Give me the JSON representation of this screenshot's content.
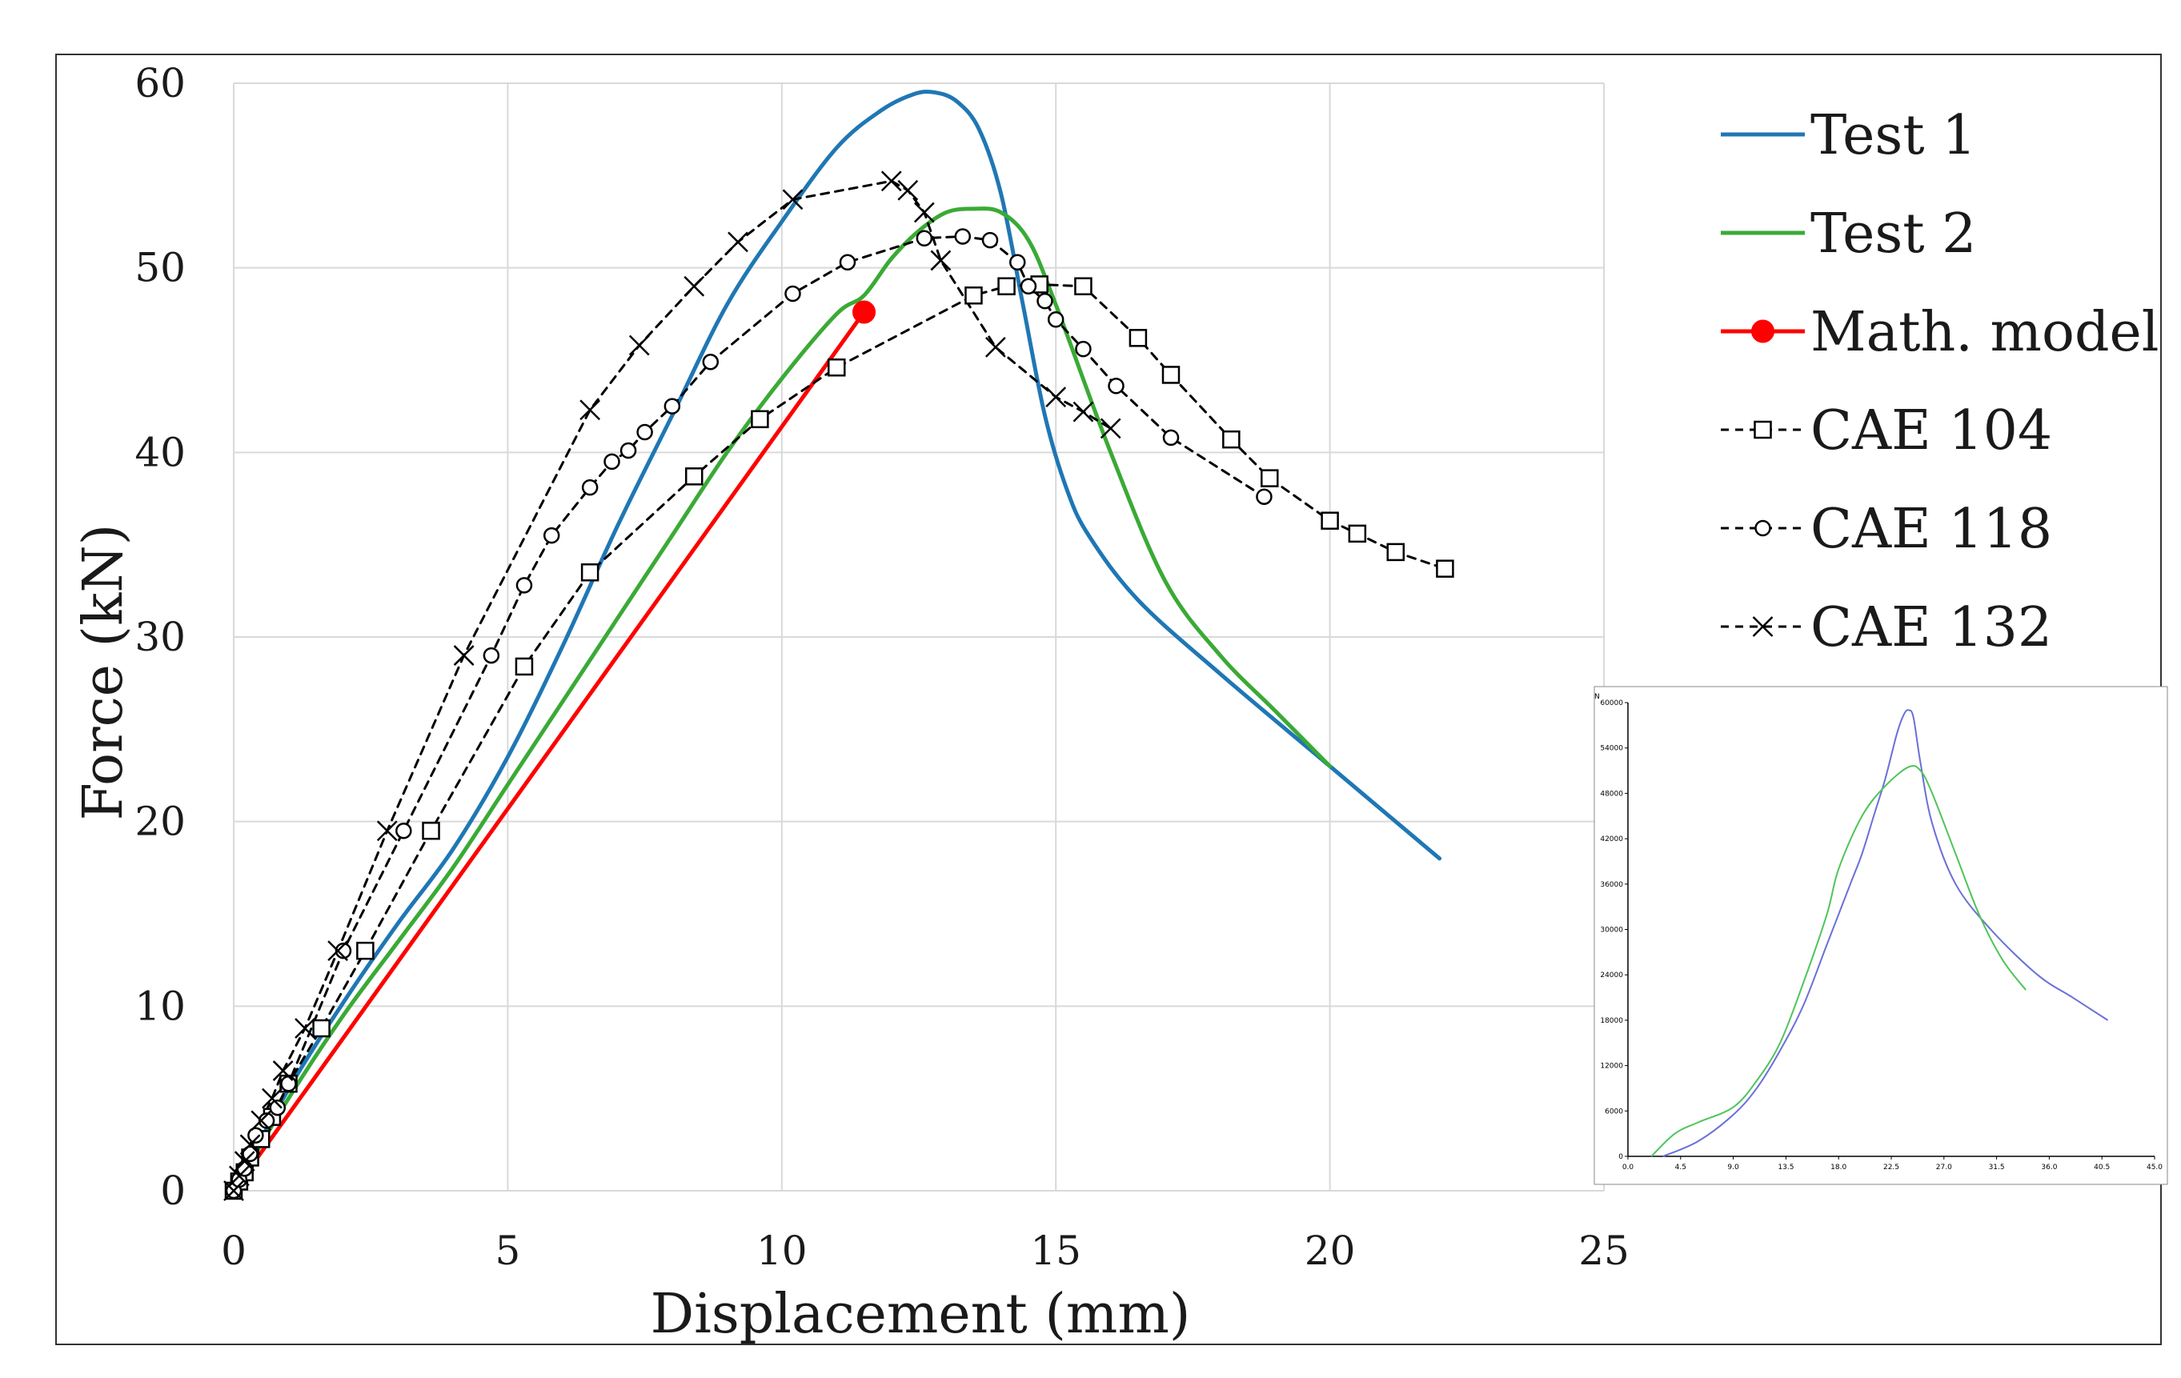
{
  "chart_data": [
    {
      "type": "line",
      "xlabel": "Displacement (mm)",
      "ylabel": "Force (kN)",
      "xlim": [
        0,
        25
      ],
      "ylim": [
        0,
        60
      ],
      "x_ticks": [
        0,
        5,
        10,
        15,
        20,
        25
      ],
      "y_ticks": [
        0,
        10,
        20,
        30,
        40,
        50,
        60
      ],
      "grid": true,
      "legend_position": "right",
      "series": [
        {
          "name": "Test 1",
          "color": "#1f77b4",
          "style": "solid",
          "marker": "none",
          "x": [
            0,
            1,
            2,
            3,
            4,
            5,
            6,
            7,
            8,
            9,
            10,
            11,
            11.8,
            12.4,
            12.8,
            13.2,
            13.6,
            14,
            14.4,
            14.8,
            15.2,
            15.6,
            16.5,
            18,
            20,
            22
          ],
          "y": [
            0,
            5.5,
            10.2,
            14.5,
            18.5,
            23.5,
            29.5,
            36,
            42,
            48,
            52.5,
            56.5,
            58.5,
            59.4,
            59.5,
            59,
            57.5,
            54,
            48,
            42,
            38,
            35.5,
            32,
            28,
            23,
            18
          ]
        },
        {
          "name": "Test 2",
          "color": "#3aaa35",
          "style": "solid",
          "marker": "none",
          "x": [
            0,
            1,
            2,
            3,
            4,
            5,
            6,
            7,
            8,
            9,
            10,
            11,
            11.5,
            12,
            12.5,
            13,
            13.5,
            14,
            14.5,
            15,
            16,
            17,
            18,
            19,
            20
          ],
          "y": [
            0,
            5,
            9.5,
            13.5,
            17.5,
            22,
            26.5,
            31,
            35.5,
            40,
            44,
            47.5,
            48.5,
            50.5,
            52,
            53,
            53.2,
            53,
            51.5,
            48,
            40,
            33,
            29,
            26,
            23
          ]
        },
        {
          "name": "Math. model",
          "color": "#ff0000",
          "style": "solid",
          "marker": "filled-circle",
          "x": [
            0,
            11.5
          ],
          "y": [
            0,
            47.6
          ]
        },
        {
          "name": "CAE 104",
          "color": "#000000",
          "style": "dashed",
          "marker": "square",
          "x": [
            0,
            0.1,
            0.2,
            0.3,
            0.5,
            0.7,
            1,
            1.6,
            2.4,
            3.6,
            5.3,
            6.5,
            8.4,
            9.6,
            11,
            13.5,
            14.1,
            14.7,
            15.5,
            16.5,
            17.1,
            18.2,
            18.9,
            20,
            20.5,
            21.2,
            22.1
          ],
          "y": [
            0,
            0.5,
            1,
            1.8,
            2.8,
            4,
            5.8,
            8.8,
            13,
            19.5,
            28.4,
            33.5,
            38.7,
            41.8,
            44.6,
            48.5,
            49,
            49.1,
            49,
            46.2,
            44.2,
            40.7,
            38.6,
            36.3,
            35.6,
            34.6,
            33.7
          ]
        },
        {
          "name": "CAE 118",
          "color": "#000000",
          "style": "dashed",
          "marker": "circle",
          "x": [
            0,
            0.1,
            0.2,
            0.3,
            0.4,
            0.6,
            0.8,
            1,
            2,
            3.1,
            4.7,
            5.3,
            5.8,
            6.5,
            6.9,
            7.2,
            7.5,
            8,
            8.7,
            10.2,
            11.2,
            12.6,
            13.3,
            13.8,
            14.3,
            14.5,
            14.8,
            15,
            15.5,
            16.1,
            17.1,
            18.8
          ],
          "y": [
            0,
            0.6,
            1.2,
            2,
            3,
            3.8,
            4.5,
            5.8,
            13,
            19.5,
            29,
            32.8,
            35.5,
            38.1,
            39.5,
            40.1,
            41.1,
            42.5,
            44.9,
            48.6,
            50.3,
            51.6,
            51.7,
            51.5,
            50.3,
            49,
            48.2,
            47.2,
            45.6,
            43.6,
            40.8,
            37.6
          ]
        },
        {
          "name": "CAE 132",
          "color": "#000000",
          "style": "dashed",
          "marker": "x",
          "x": [
            0,
            0.1,
            0.2,
            0.3,
            0.5,
            0.7,
            0.9,
            1.3,
            1.9,
            2.8,
            4.2,
            6.5,
            7.4,
            8.4,
            9.2,
            10.2,
            12,
            12.3,
            12.6,
            12.9,
            13.9,
            15,
            15.5,
            16
          ],
          "y": [
            0,
            0.8,
            1.6,
            2.5,
            3.8,
            5,
            6.5,
            8.8,
            13,
            19.5,
            29,
            42.3,
            45.8,
            49,
            51.4,
            53.7,
            54.7,
            54.2,
            53,
            50.4,
            45.7,
            43,
            42.2,
            41.3
          ]
        }
      ]
    },
    {
      "type": "line",
      "title": "",
      "y_unit_label": "N",
      "xlim": [
        0,
        45
      ],
      "ylim": [
        0,
        60000
      ],
      "x_ticks": [
        "0.0",
        "4.5",
        "9.0",
        "13.5",
        "18.0",
        "22.5",
        "27.0",
        "31.5",
        "36.0",
        "40.5",
        "45.0"
      ],
      "y_ticks": [
        "0",
        "6000",
        "12000",
        "18000",
        "24000",
        "30000",
        "36000",
        "42000",
        "48000",
        "54000",
        "60000"
      ],
      "series": [
        {
          "name": "blue",
          "color": "#6a6fd8",
          "x": [
            3,
            6,
            9,
            11,
            13,
            15,
            17,
            19,
            20,
            21,
            22,
            23,
            23.6,
            24,
            24.4,
            25,
            26,
            28,
            31,
            35,
            38,
            41
          ],
          "y": [
            0,
            2000,
            5500,
            9000,
            14000,
            20000,
            28000,
            36000,
            40000,
            45000,
            50000,
            56000,
            58500,
            59000,
            58000,
            52000,
            44000,
            36000,
            30000,
            24000,
            21000,
            18000
          ]
        },
        {
          "name": "green",
          "color": "#4fc45a",
          "x": [
            2,
            4,
            6,
            9,
            11,
            13,
            15,
            17,
            18,
            20,
            22,
            24,
            25,
            26,
            28,
            30,
            32,
            34
          ],
          "y": [
            0,
            3000,
            4500,
            6500,
            10000,
            15000,
            23000,
            32000,
            38000,
            45000,
            49000,
            51500,
            51000,
            48000,
            40000,
            32000,
            26000,
            22000
          ]
        }
      ]
    }
  ]
}
